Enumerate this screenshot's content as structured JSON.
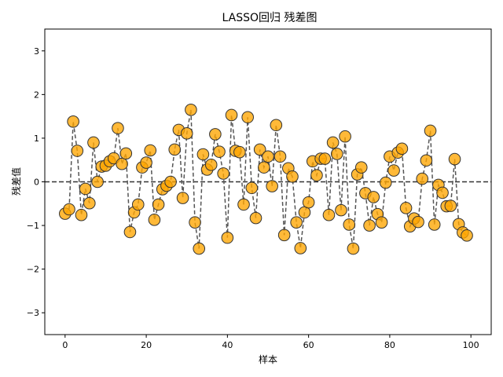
{
  "chart_data": {
    "type": "scatter",
    "title": "LASSO回归 残差图",
    "xlabel": "样本",
    "ylabel": "残差值",
    "xlim": [
      -5,
      105
    ],
    "ylim": [
      -3.5,
      3.5
    ],
    "xticks": [
      0,
      20,
      40,
      60,
      80,
      100
    ],
    "yticks": [
      -3,
      -2,
      -1,
      0,
      1,
      2,
      3
    ],
    "grid": false,
    "zero_reference_line": {
      "y": 0,
      "style": "dashed",
      "color": "#333333"
    },
    "connector_line": {
      "style": "dashed",
      "color": "#555555"
    },
    "marker": {
      "fill": "#ffa500",
      "edge": "#333333"
    },
    "series": [
      {
        "x": [
          0,
          1,
          2,
          3,
          4,
          5,
          6,
          7,
          8,
          9,
          10,
          11,
          12,
          13,
          14,
          15,
          16,
          17,
          18,
          19,
          20,
          21,
          22,
          23,
          24,
          25,
          26,
          27,
          28,
          29,
          30,
          31,
          32,
          33,
          34,
          35,
          36,
          37,
          38,
          39,
          40,
          41,
          42,
          43,
          44,
          45,
          46,
          47,
          48,
          49,
          50,
          51,
          52,
          53,
          54,
          55,
          56,
          57,
          58,
          59,
          60,
          61,
          62,
          63,
          64,
          65,
          66,
          67,
          68,
          69,
          70,
          71,
          72,
          73,
          74,
          75,
          76,
          77,
          78,
          79,
          80,
          81,
          82,
          83,
          84,
          85,
          86,
          87,
          88,
          89,
          90,
          91,
          92,
          93,
          94,
          95,
          96,
          97,
          98,
          99
        ],
        "y": [
          -0.73,
          -0.63,
          1.38,
          0.71,
          -0.76,
          -0.16,
          -0.49,
          0.9,
          0.0,
          0.35,
          0.37,
          0.47,
          0.54,
          1.23,
          0.41,
          0.65,
          -1.15,
          -0.7,
          -0.52,
          0.33,
          0.44,
          0.72,
          -0.87,
          -0.52,
          -0.17,
          -0.09,
          0.0,
          0.74,
          1.19,
          -0.37,
          1.11,
          1.65,
          -0.93,
          -1.53,
          0.63,
          0.28,
          0.39,
          1.09,
          0.69,
          0.19,
          -1.28,
          1.53,
          0.71,
          0.68,
          -0.52,
          1.48,
          -0.14,
          -0.83,
          0.74,
          0.33,
          0.58,
          -0.1,
          1.3,
          0.58,
          -1.22,
          0.31,
          0.12,
          -0.93,
          -1.52,
          -0.7,
          -0.47,
          0.47,
          0.15,
          0.53,
          0.53,
          -0.76,
          0.9,
          0.64,
          -0.65,
          1.04,
          -0.98,
          -1.53,
          0.17,
          0.33,
          -0.26,
          -1.0,
          -0.35,
          -0.74,
          -0.93,
          -0.02,
          0.58,
          0.26,
          0.67,
          0.76,
          -0.6,
          -1.02,
          -0.84,
          -0.92,
          0.07,
          0.49,
          1.17,
          -0.98,
          -0.07,
          -0.25,
          -0.56,
          -0.55,
          0.52,
          -0.97,
          -1.16,
          -1.23
        ]
      }
    ]
  }
}
